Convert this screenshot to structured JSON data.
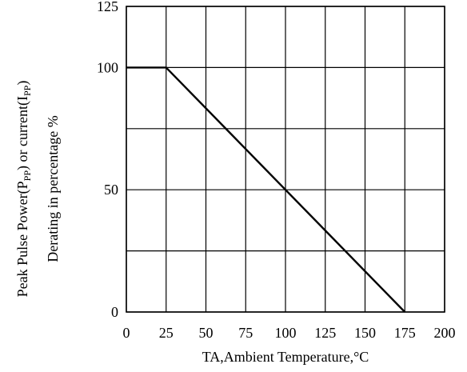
{
  "chart_data": {
    "type": "line",
    "title": "",
    "xlabel": "TA,Ambient Temperature,°C",
    "ylabel_line1_parts": [
      {
        "text": "Peak Pulse Power(P",
        "sub": false
      },
      {
        "text": "PP",
        "sub": true
      },
      {
        "text": ") or current(I",
        "sub": false
      },
      {
        "text": "PP",
        "sub": true
      },
      {
        "text": ")",
        "sub": false
      }
    ],
    "ylabel_line2": "Derating in percentage %",
    "xlim": [
      0,
      200
    ],
    "ylim": [
      0,
      125
    ],
    "x_ticks": [
      0,
      25,
      50,
      75,
      100,
      125,
      150,
      175,
      200
    ],
    "x_tick_labels": [
      "0",
      "25",
      "50",
      "75",
      "100",
      "125",
      "150",
      "175",
      "200"
    ],
    "y_ticks": [
      0,
      50,
      100,
      125
    ],
    "y_tick_labels": [
      "0",
      "50",
      "100",
      "125"
    ],
    "x_grid": [
      0,
      25,
      50,
      75,
      100,
      125,
      150,
      175,
      200
    ],
    "y_grid": [
      0,
      25,
      50,
      75,
      100,
      125
    ],
    "grid": true,
    "series": [
      {
        "x": [
          0,
          25,
          175
        ],
        "y": [
          100,
          100,
          0
        ]
      }
    ],
    "colors": {
      "line": "#000000",
      "grid": "#000000",
      "background": "#ffffff"
    }
  }
}
